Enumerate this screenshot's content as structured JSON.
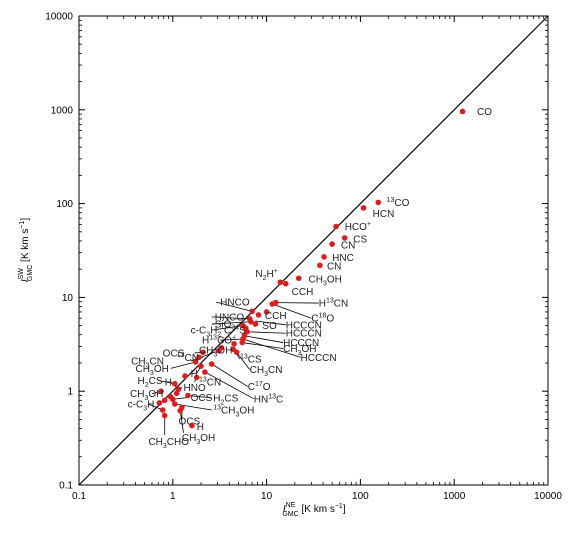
{
  "chart_data": {
    "type": "scatter",
    "xlabel": "I_GMC^NE [K km s^-1]",
    "ylabel": "I_GMC^SW [K km s^-1]",
    "xscale": "log",
    "yscale": "log",
    "xlim": [
      0.1,
      10000
    ],
    "ylim": [
      0.1,
      10000
    ],
    "x_ticks": [
      "0.1",
      "1",
      "10",
      "100",
      "1000",
      "10000"
    ],
    "y_ticks": [
      "0.1",
      "1",
      "10",
      "100",
      "1000",
      "10000"
    ],
    "reference_line": "y = x",
    "marker_color": "#e31a1c",
    "points": [
      {
        "label": "CO",
        "x": 1230,
        "y": 960
      },
      {
        "label": "13CO",
        "x": 155,
        "y": 103
      },
      {
        "label": "HCN",
        "x": 108,
        "y": 90
      },
      {
        "label": "HCO+",
        "x": 55,
        "y": 57
      },
      {
        "label": "CS",
        "x": 68,
        "y": 43
      },
      {
        "label": "CN",
        "x": 50,
        "y": 37
      },
      {
        "label": "HNC",
        "x": 41,
        "y": 27
      },
      {
        "label": "CN",
        "x": 37,
        "y": 22
      },
      {
        "label": "N2H+",
        "x": 14,
        "y": 14.5
      },
      {
        "label": "CH3OH",
        "x": 22,
        "y": 16
      },
      {
        "label": "CCH",
        "x": 16,
        "y": 14
      },
      {
        "label": "H13CN",
        "x": 11.5,
        "y": 8.5
      },
      {
        "label": "HNCO",
        "x": 12.5,
        "y": 8.8
      },
      {
        "label": "C18O",
        "x": 10,
        "y": 7
      },
      {
        "label": "HNCO",
        "x": 7,
        "y": 7.1
      },
      {
        "label": "CCH",
        "x": 8.2,
        "y": 6.5
      },
      {
        "label": "SO",
        "x": 7.6,
        "y": 5.2
      },
      {
        "label": "SiO",
        "x": 6.6,
        "y": 5.9
      },
      {
        "label": "HCCCN",
        "x": 6.8,
        "y": 5.5
      },
      {
        "label": "c-C3H2",
        "x": 5.6,
        "y": 5.0
      },
      {
        "label": "C34S",
        "x": 6.0,
        "y": 4.7
      },
      {
        "label": "HCCCN",
        "x": 6.2,
        "y": 4.3
      },
      {
        "label": "HCCCN",
        "x": 5.8,
        "y": 3.9
      },
      {
        "label": "H13CO+",
        "x": 5.6,
        "y": 3.6
      },
      {
        "label": "CH3OH",
        "x": 5.5,
        "y": 3.3
      },
      {
        "label": "HCCCN",
        "x": 4.5,
        "y": 3.2
      },
      {
        "label": "13CS",
        "x": 4.4,
        "y": 2.8
      },
      {
        "label": "CH3OH",
        "x": 3.3,
        "y": 2.9
      },
      {
        "label": "CH3CN",
        "x": 4.8,
        "y": 2.6
      },
      {
        "label": "CH3CN",
        "x": 3.1,
        "y": 2.7
      },
      {
        "label": "13CN",
        "x": 2.1,
        "y": 2.6
      },
      {
        "label": "OCS",
        "x": 1.9,
        "y": 2.3
      },
      {
        "label": "CH3CN",
        "x": 1.75,
        "y": 2.05
      },
      {
        "label": "CH3OH",
        "x": 2.0,
        "y": 1.85
      },
      {
        "label": "C17O",
        "x": 2.6,
        "y": 1.95
      },
      {
        "label": "HN13C",
        "x": 2.2,
        "y": 1.6
      },
      {
        "label": "13CN",
        "x": 1.8,
        "y": 1.4
      },
      {
        "label": "H",
        "x": 1.35,
        "y": 1.45
      },
      {
        "label": "H2CS",
        "x": 1.05,
        "y": 1.2
      },
      {
        "label": "H",
        "x": 1.15,
        "y": 1.05
      },
      {
        "label": "HNO",
        "x": 1.1,
        "y": 0.95
      },
      {
        "label": "H2CS",
        "x": 1.45,
        "y": 0.9
      },
      {
        "label": "CH3OH",
        "x": 0.75,
        "y": 1.0
      },
      {
        "label": "c-C3H",
        "x": 0.95,
        "y": 0.87
      },
      {
        "label": "OCS",
        "x": 1.0,
        "y": 0.82
      },
      {
        "label": "13CH3OH",
        "x": 1.05,
        "y": 0.73
      },
      {
        "label": "OCS",
        "x": 1.25,
        "y": 0.67
      },
      {
        "label": "CH3OH",
        "x": 0.72,
        "y": 0.75
      },
      {
        "label": "c-C3H",
        "x": 0.78,
        "y": 0.63
      },
      {
        "label": "H",
        "x": 0.82,
        "y": 0.8
      },
      {
        "label": "H",
        "x": 1.6,
        "y": 0.43
      },
      {
        "label": "CH3CHO",
        "x": 0.82,
        "y": 0.55
      },
      {
        "label": "CH3OH",
        "x": 1.2,
        "y": 0.62
      }
    ],
    "labels": [
      {
        "text": "CO",
        "lx": 1750,
        "ly": 960
      },
      {
        "text": "13CO",
        "sup": "13",
        "base": "CO",
        "lx": 190,
        "ly": 103
      },
      {
        "text": "HCN",
        "lx": 135,
        "ly": 78
      },
      {
        "text": "HCO+",
        "base": "HCO",
        "supR": "+",
        "lx": 68,
        "ly": 57
      },
      {
        "text": "CS",
        "lx": 84,
        "ly": 42
      },
      {
        "text": "CN",
        "lx": 62,
        "ly": 36
      },
      {
        "text": "HNC",
        "lx": 50,
        "ly": 26.5
      },
      {
        "text": "CN",
        "lx": 44,
        "ly": 21.5
      },
      {
        "text": "N2H+",
        "base": "N",
        "sub": "2",
        "rest": "H",
        "supR": "+",
        "lx": 7.6,
        "ly": 18
      },
      {
        "text": "CH3OH",
        "base": "CH",
        "sub": "3",
        "rest": "OH",
        "lx": 28,
        "ly": 15.8
      },
      {
        "text": "CCH",
        "lx": 18.5,
        "ly": 11.5
      },
      {
        "text": "H13CN",
        "base": "H",
        "sup": "13",
        "rest": "CN",
        "lx": 36,
        "ly": 8.7
      },
      {
        "text": "C18O",
        "base": "C",
        "sup": "18",
        "rest": "O",
        "lx": 30,
        "ly": 6.0
      },
      {
        "text": "HNCO",
        "lx": 3.2,
        "ly": 8.9
      },
      {
        "text": "CCH",
        "lx": 9.6,
        "ly": 6.4
      },
      {
        "text": "HNCO",
        "lx": 2.8,
        "ly": 6.2
      },
      {
        "text": "SO",
        "lx": 9.0,
        "ly": 5.0
      },
      {
        "text": "SiO",
        "lx": 2.8,
        "ly": 5.2
      },
      {
        "text": "HCCCN",
        "lx": 16,
        "ly": 5.1
      },
      {
        "text": "c-C3H2 C34S",
        "lx": 1.55,
        "ly": 4.5
      },
      {
        "text": "HCCCN",
        "lx": 16,
        "ly": 4.15
      },
      {
        "text": "HCCCN",
        "lx": 15,
        "ly": 3.3
      },
      {
        "text": "H13CO+",
        "lx": 2.05,
        "ly": 3.5
      },
      {
        "text": "CH3OH",
        "lx": 15,
        "ly": 2.85
      },
      {
        "text": "HCCCN",
        "lx": 23,
        "ly": 2.3
      },
      {
        "text": "CH3OH",
        "lx": 1.9,
        "ly": 2.75
      },
      {
        "text": "13CS",
        "lx": 5.2,
        "ly": 2.2
      },
      {
        "text": "CH3CN",
        "lx": 6.6,
        "ly": 1.7
      },
      {
        "text": "CH3CN",
        "lx": 0.36,
        "ly": 2.1
      },
      {
        "text": "OCS",
        "lx": 0.78,
        "ly": 2.55
      },
      {
        "text": "13CN",
        "lx": 1.1,
        "ly": 2.3
      },
      {
        "text": "CH3OH",
        "lx": 0.4,
        "ly": 1.75
      },
      {
        "text": "H",
        "lx": 1.55,
        "ly": 1.55
      },
      {
        "text": "13CN",
        "lx": 1.9,
        "ly": 1.25
      },
      {
        "text": "C17O",
        "lx": 6.3,
        "ly": 1.12
      },
      {
        "text": "HN13C",
        "lx": 7.3,
        "ly": 0.83
      },
      {
        "text": "H2CS",
        "lx": 0.42,
        "ly": 1.3
      },
      {
        "text": "H",
        "lx": 0.82,
        "ly": 1.25
      },
      {
        "text": "HNO",
        "lx": 1.3,
        "ly": 1.1
      },
      {
        "text": "CH3OH",
        "lx": 0.35,
        "ly": 0.94
      },
      {
        "text": "OCS",
        "lx": 1.55,
        "ly": 0.86
      },
      {
        "text": "H2CS",
        "lx": 2.7,
        "ly": 0.85
      },
      {
        "text": "13CH3OH",
        "lx": 2.7,
        "ly": 0.63
      },
      {
        "text": "c-C3H",
        "lx": 0.33,
        "ly": 0.73
      },
      {
        "text": "OCS",
        "lx": 1.15,
        "ly": 0.48
      },
      {
        "text": "H",
        "lx": 1.8,
        "ly": 0.42
      },
      {
        "text": "CH3OH",
        "lx": 1.25,
        "ly": 0.32
      },
      {
        "text": "CH3CHO",
        "lx": 0.55,
        "ly": 0.29
      }
    ],
    "grid": false,
    "legend": "none"
  }
}
